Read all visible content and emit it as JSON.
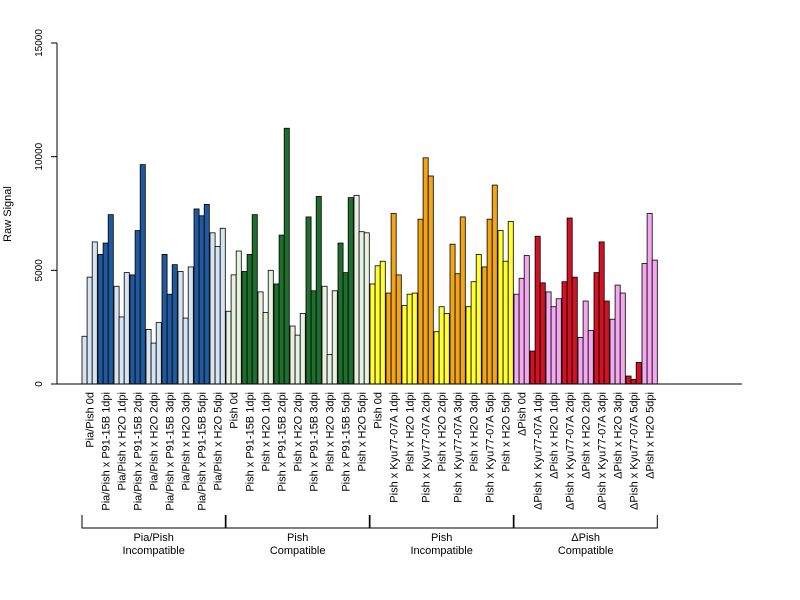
{
  "chart_data": {
    "type": "bar",
    "ylabel": "Raw Signal",
    "ylim": [
      0,
      15000
    ],
    "yticks": [
      0,
      5000,
      10000,
      15000
    ],
    "grid": false,
    "categories": [
      "Pia/Pish 0d",
      "Pia/Pish x P91-15B 1dpi",
      "Pia/Pish x H2O 1dpi",
      "Pia/Pish x P91-15B 2dpi",
      "Pia/Pish x H2O 2dpi",
      "Pia/Pish x P91-15B 3dpi",
      "Pia/Pish x H2O 3dpi",
      "Pia/Pish x P91-15B 5dpi",
      "Pia/Pish x H2O 5dpi",
      "Pish 0d",
      "Pish x P91-15B 1dpi",
      "Pish x H2O 1dpi",
      "Pish x P91-15B 2dpi",
      "Pish x H2O 2dpi",
      "Pish x P91-15B 3dpi",
      "Pish x H2O 3dpi",
      "Pish x P91-15B 5dpi",
      "Pish x H2O 5dpi",
      "Pish 0d",
      "Pish x Kyu77-07A 1dpi",
      "Pish x H2O 1dpi",
      "Pish x Kyu77-07A 2dpi",
      "Pish x H2O 2dpi",
      "Pish x Kyu77-07A 3dpi",
      "Pish x H2O 3dpi",
      "Pish x Kyu77-07A 5dpi",
      "Pish x H2O 5dpi",
      "ΔPish 0d",
      "ΔPish x Kyu77-07A 1dpi",
      "ΔPish x H2O 1dpi",
      "ΔPish x Kyu77-07A 2dpi",
      "ΔPish x H2O 2dpi",
      "ΔPish x Kyu77-07A 3dpi",
      "ΔPish x H2O 3dpi",
      "ΔPish x Kyu77-07A 5dpi",
      "ΔPish x H2O 5dpi"
    ],
    "values": [
      [
        2100,
        4700,
        6250
      ],
      [
        5700,
        6200,
        7450
      ],
      [
        4300,
        2950,
        4900
      ],
      [
        4800,
        6750,
        9650
      ],
      [
        2400,
        1800,
        2700
      ],
      [
        5700,
        3950,
        5250
      ],
      [
        4950,
        2900,
        5150
      ],
      [
        7700,
        7400,
        7900
      ],
      [
        6650,
        6050,
        6850
      ],
      [
        3200,
        4800,
        5850
      ],
      [
        4950,
        5700,
        7450
      ],
      [
        4050,
        3150,
        5000
      ],
      [
        4400,
        6550,
        11250
      ],
      [
        2550,
        2150,
        3100
      ],
      [
        7350,
        4100,
        8250
      ],
      [
        4300,
        1300,
        4100
      ],
      [
        6200,
        4900,
        8200
      ],
      [
        8300,
        6700,
        6650
      ],
      [
        4400,
        5200,
        5400
      ],
      [
        4000,
        7500,
        4800
      ],
      [
        3450,
        3950,
        4000
      ],
      [
        7250,
        9950,
        9150
      ],
      [
        2300,
        3400,
        3100
      ],
      [
        6150,
        4850,
        7350
      ],
      [
        3400,
        4500,
        5700
      ],
      [
        5150,
        7250,
        8750
      ],
      [
        6750,
        5400,
        7150
      ],
      [
        3950,
        4650,
        5650
      ],
      [
        1450,
        6500,
        4450
      ],
      [
        4050,
        3400,
        3750
      ],
      [
        4500,
        7300,
        4700
      ],
      [
        2050,
        3650,
        2350
      ],
      [
        4900,
        6250,
        3650
      ],
      [
        2850,
        4350,
        4000
      ],
      [
        350,
        200,
        950
      ],
      [
        5300,
        7500,
        5450
      ]
    ],
    "colors": [
      "#d6e4f2",
      "#1f5aa0",
      "#d6e4f2",
      "#1f5aa0",
      "#d6e4f2",
      "#1f5aa0",
      "#d6e4f2",
      "#1f5aa0",
      "#d6e4f2",
      "#e6f2df",
      "#1e6f2e",
      "#e6f2df",
      "#1e6f2e",
      "#e6f2df",
      "#1e6f2e",
      "#e6f2df",
      "#1e6f2e",
      "#e6f2df",
      "#ffff33",
      "#f2a516",
      "#ffff33",
      "#f2a516",
      "#ffff33",
      "#f2a516",
      "#ffff33",
      "#f2a516",
      "#ffff33",
      "#f3a8ef",
      "#d11224",
      "#f3a8ef",
      "#d11224",
      "#f3a8ef",
      "#d11224",
      "#f3a8ef",
      "#d11224",
      "#f3a8ef"
    ],
    "groups": [
      {
        "label_line1": "Pia/Pish",
        "label_line2": "Incompatible",
        "start": 0,
        "end": 8
      },
      {
        "label_line1": "Pish",
        "label_line2": "Compatible",
        "start": 9,
        "end": 17
      },
      {
        "label_line1": "Pish",
        "label_line2": "Incompatible",
        "start": 18,
        "end": 26
      },
      {
        "label_line1": "ΔPish",
        "label_line2": "Compatible",
        "start": 27,
        "end": 35
      }
    ]
  }
}
